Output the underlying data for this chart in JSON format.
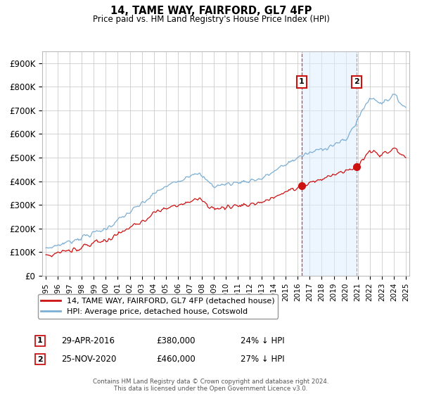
{
  "title": "14, TAME WAY, FAIRFORD, GL7 4FP",
  "subtitle": "Price paid vs. HM Land Registry's House Price Index (HPI)",
  "footer": "Contains HM Land Registry data © Crown copyright and database right 2024.\nThis data is licensed under the Open Government Licence v3.0.",
  "legend_line1": "14, TAME WAY, FAIRFORD, GL7 4FP (detached house)",
  "legend_line2": "HPI: Average price, detached house, Cotswold",
  "transaction1": {
    "label": "1",
    "date": "29-APR-2016",
    "price": "£380,000",
    "hpi": "24% ↓ HPI",
    "x_year": 2016.33
  },
  "transaction2": {
    "label": "2",
    "date": "25-NOV-2020",
    "price": "£460,000",
    "hpi": "27% ↓ HPI",
    "x_year": 2020.9
  },
  "hpi_color": "#7bafd4",
  "hpi_fill_color": "#ddeeff",
  "price_color": "#cc1111",
  "marker_box_color": "#cc1111",
  "grid_color": "#cccccc",
  "bg_color": "#ffffff",
  "ylim": [
    0,
    950000
  ],
  "yticks": [
    0,
    100000,
    200000,
    300000,
    400000,
    500000,
    600000,
    700000,
    800000,
    900000
  ],
  "ytick_labels": [
    "£0",
    "£100K",
    "£200K",
    "£300K",
    "£400K",
    "£500K",
    "£600K",
    "£700K",
    "£800K",
    "£900K"
  ],
  "xlim": [
    1994.7,
    2025.3
  ],
  "xtick_years": [
    1995,
    1996,
    1997,
    1998,
    1999,
    2000,
    2001,
    2002,
    2003,
    2004,
    2005,
    2006,
    2007,
    2008,
    2009,
    2010,
    2011,
    2012,
    2013,
    2014,
    2015,
    2016,
    2017,
    2018,
    2019,
    2020,
    2021,
    2022,
    2023,
    2024,
    2025
  ]
}
